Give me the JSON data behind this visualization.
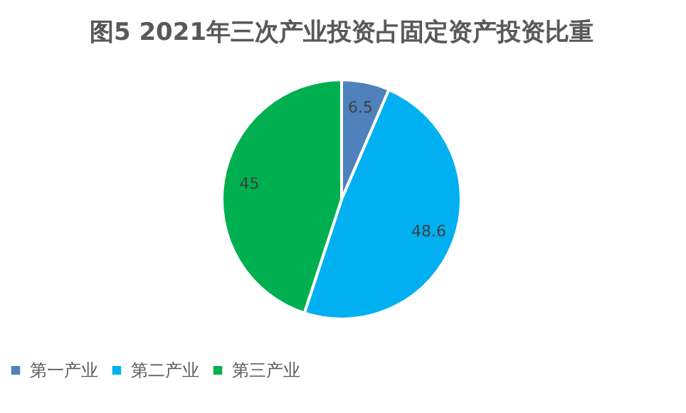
{
  "chart_data": {
    "type": "pie",
    "title": "图5 2021年三次产业投资占固定资产投资比重",
    "categories": [
      "第一产业",
      "第二产业",
      "第三产业"
    ],
    "values": [
      6.5,
      48.6,
      45
    ],
    "colors": [
      "#4f81bd",
      "#00b0f0",
      "#00b050"
    ],
    "data_labels": true,
    "legend": "bottom"
  }
}
